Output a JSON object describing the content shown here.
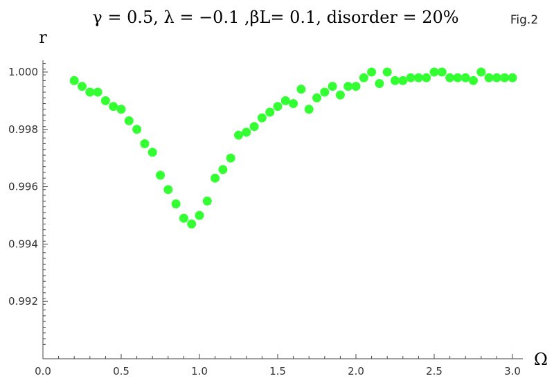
{
  "figure_label": "Fig.2",
  "chart_data": {
    "type": "scatter",
    "title": "γ = 0.5, λ = −0.1 ,βL= 0.1, disorder = 20%",
    "xlabel": "Ω",
    "ylabel": "r",
    "xlim": [
      0.0,
      3.05
    ],
    "ylim": [
      0.9902,
      1.0004
    ],
    "x_ticks": [
      0.0,
      0.5,
      1.0,
      1.5,
      2.0,
      2.5,
      3.0
    ],
    "x_tick_labels": [
      "0.0",
      "0.5",
      "1.0",
      "1.5",
      "2.0",
      "2.5",
      "3.0"
    ],
    "y_ticks": [
      0.992,
      0.994,
      0.996,
      0.998,
      1.0
    ],
    "y_tick_labels": [
      "0.992",
      "0.994",
      "0.996",
      "0.998",
      "1.000"
    ],
    "grid": false,
    "marker_color": "#33ff33",
    "series": [
      {
        "x": [
          0.2,
          0.25,
          0.3,
          0.35,
          0.4,
          0.45,
          0.5,
          0.55,
          0.6,
          0.65,
          0.7,
          0.75,
          0.8,
          0.85,
          0.9,
          0.95,
          1.0,
          1.05,
          1.1,
          1.15,
          1.2,
          1.25,
          1.3,
          1.35,
          1.4,
          1.45,
          1.5,
          1.55,
          1.6,
          1.65,
          1.7,
          1.75,
          1.8,
          1.85,
          1.9,
          1.95,
          2.0,
          2.05,
          2.1,
          2.15,
          2.2,
          2.25,
          2.3,
          2.35,
          2.4,
          2.45,
          2.5,
          2.55,
          2.6,
          2.65,
          2.7,
          2.75,
          2.8,
          2.85,
          2.9,
          2.95,
          3.0
        ],
        "y": [
          0.9997,
          0.9995,
          0.9993,
          0.9993,
          0.999,
          0.9988,
          0.9987,
          0.9983,
          0.998,
          0.9975,
          0.9972,
          0.9964,
          0.9959,
          0.9954,
          0.9949,
          0.9947,
          0.995,
          0.9955,
          0.9963,
          0.9966,
          0.997,
          0.9978,
          0.9979,
          0.9981,
          0.9984,
          0.9986,
          0.9988,
          0.999,
          0.9989,
          0.9994,
          0.9987,
          0.9991,
          0.9993,
          0.9995,
          0.9992,
          0.9995,
          0.9995,
          0.9998,
          1.0,
          0.9996,
          1.0,
          0.9997,
          0.9997,
          0.9998,
          0.9998,
          0.9998,
          1.0,
          1.0,
          0.9998,
          0.9998,
          0.9998,
          0.9997,
          1.0,
          0.9998,
          0.9998,
          0.9998,
          0.9998
        ]
      }
    ]
  }
}
